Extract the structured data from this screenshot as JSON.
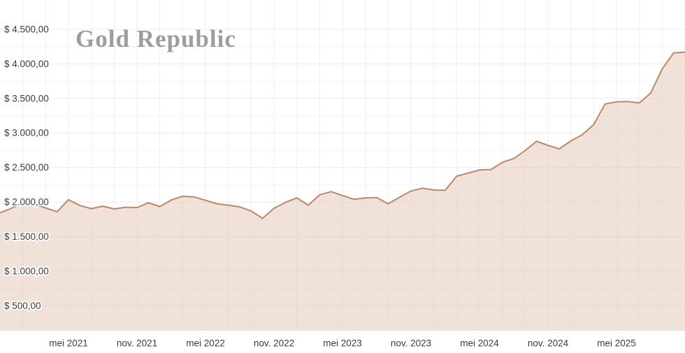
{
  "brand": {
    "title": "Gold Republic"
  },
  "chart_data": {
    "type": "area",
    "title": "Gold Republic",
    "description": "Gold price in USD, monthly points from nov. 2020 through nov. 2025, area chart with tan line and light beige fill",
    "legend": "none",
    "grid": "on",
    "currency_prefix": "$",
    "ylim": [
      0,
      4750
    ],
    "y_axis": {
      "side": "left-inside",
      "ticks": [
        {
          "value": 4500,
          "label": "$ 4.500,00"
        },
        {
          "value": 4000,
          "label": "$ 4.000,00"
        },
        {
          "value": 3500,
          "label": "$ 3.500,00"
        },
        {
          "value": 3000,
          "label": "$ 3.000,00"
        },
        {
          "value": 2500,
          "label": "$ 2.500,00"
        },
        {
          "value": 2000,
          "label": "$ 2.000,00"
        },
        {
          "value": 1500,
          "label": "$ 1.500,00"
        },
        {
          "value": 1000,
          "label": "$ 1.000,00"
        },
        {
          "value": 500,
          "label": "$ 500,00"
        }
      ]
    },
    "x_axis": {
      "monthly_from": "nov. 2020",
      "monthly_to": "nov. 2025",
      "tick_indices": [
        6,
        12,
        18,
        24,
        30,
        36,
        42,
        48,
        54
      ],
      "tick_labels": [
        "mei 2021",
        "nov. 2021",
        "mei 2022",
        "nov. 2022",
        "mei 2023",
        "nov. 2023",
        "mei 2024",
        "nov. 2024",
        "mei 2025"
      ]
    },
    "series": [
      {
        "name": "gold-price-usd",
        "values": [
          1845,
          1910,
          1990,
          1970,
          1915,
          1860,
          2035,
          1950,
          1905,
          1940,
          1900,
          1925,
          1920,
          1990,
          1935,
          2030,
          2085,
          2075,
          2025,
          1975,
          1955,
          1930,
          1870,
          1765,
          1910,
          1995,
          2060,
          1955,
          2105,
          2150,
          2095,
          2040,
          2060,
          2065,
          1975,
          2070,
          2160,
          2200,
          2175,
          2170,
          2375,
          2420,
          2465,
          2470,
          2575,
          2630,
          2745,
          2880,
          2820,
          2770,
          2885,
          2975,
          3120,
          3420,
          3450,
          3455,
          3435,
          3580,
          3925,
          4160,
          4170
        ]
      }
    ],
    "colors": {
      "line": "#b8896b",
      "fill": "#e3c5b3",
      "fill_opacity": 0.5,
      "grid_major": "#ebebeb",
      "grid_minor": "#f4f3f2",
      "grid_vertical": "#f2eeeb",
      "axis_text": "#3c3c3c",
      "title_text": "#9d9d9d",
      "background": "#ffffff"
    }
  }
}
